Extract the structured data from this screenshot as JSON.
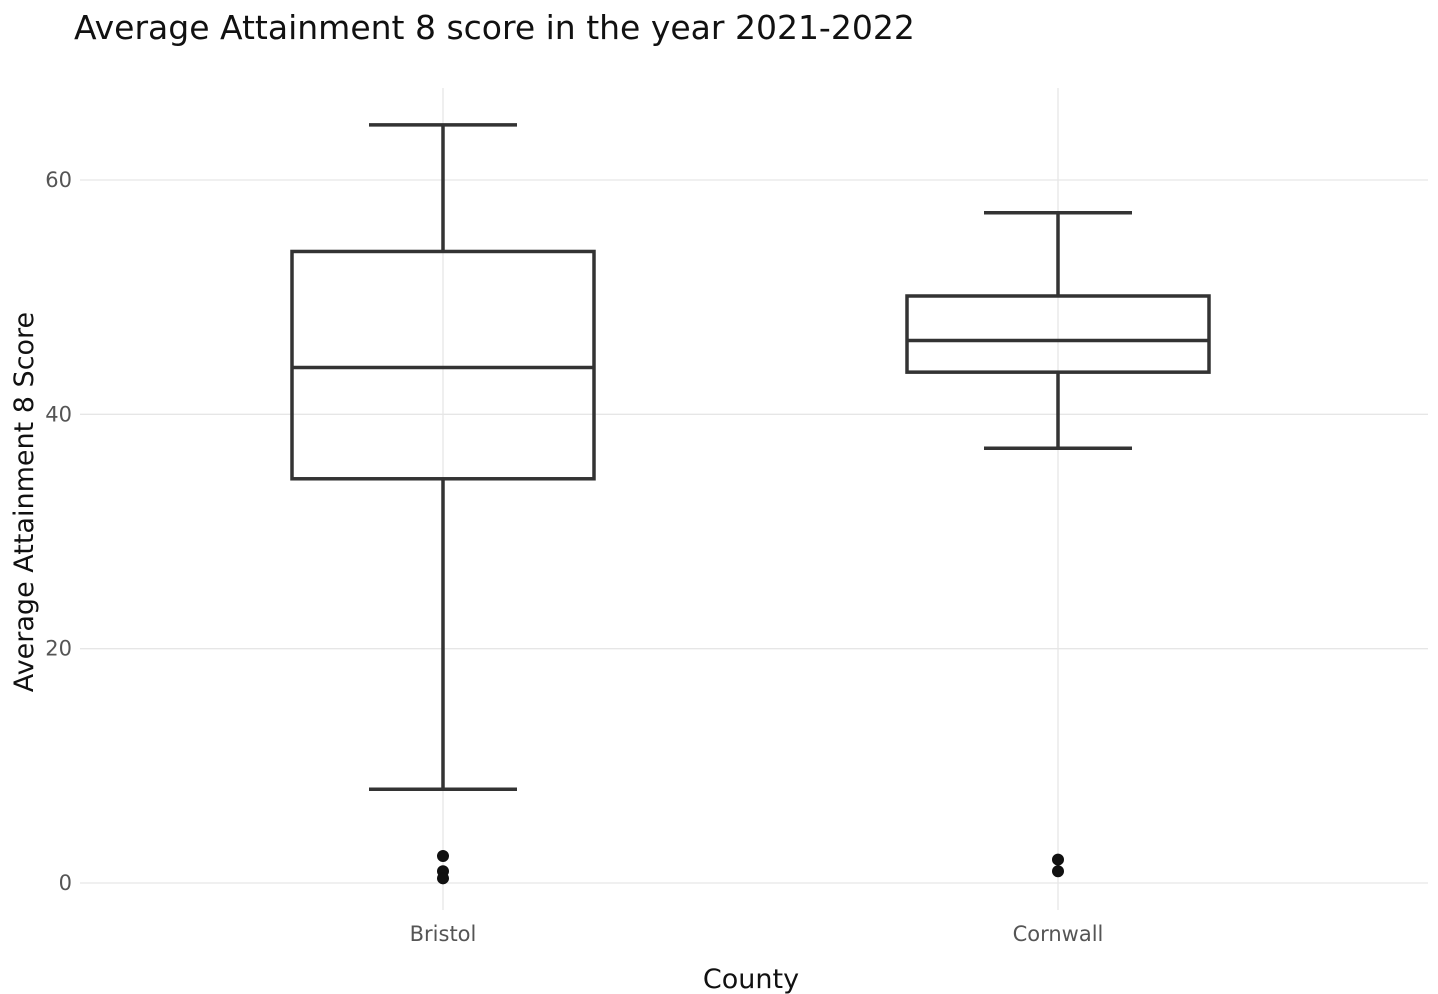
{
  "chart_data": {
    "type": "boxplot",
    "title": "Average Attainment 8 score in the year 2021-2022",
    "xlabel": "County",
    "ylabel": "Average Attainment 8 Score",
    "ylim": [
      -6,
      68
    ],
    "yticks": [
      0,
      20,
      40,
      60
    ],
    "grid": true,
    "legend": "none",
    "categories": [
      "Bristol",
      "Cornwall"
    ],
    "boxes": [
      {
        "category": "Bristol",
        "whisker_low": 8.0,
        "q1": 34.5,
        "median": 44.0,
        "q3": 53.9,
        "whisker_high": 64.7,
        "outliers": [
          2.3,
          1.0,
          0.4
        ]
      },
      {
        "category": "Cornwall",
        "whisker_low": 37.1,
        "q1": 43.6,
        "median": 46.3,
        "q3": 50.1,
        "whisker_high": 57.2,
        "outliers": [
          2.0,
          1.0
        ]
      }
    ],
    "colors": {
      "box": "#333333",
      "grid": "#e6e6e6",
      "outlier": "#111111"
    }
  }
}
